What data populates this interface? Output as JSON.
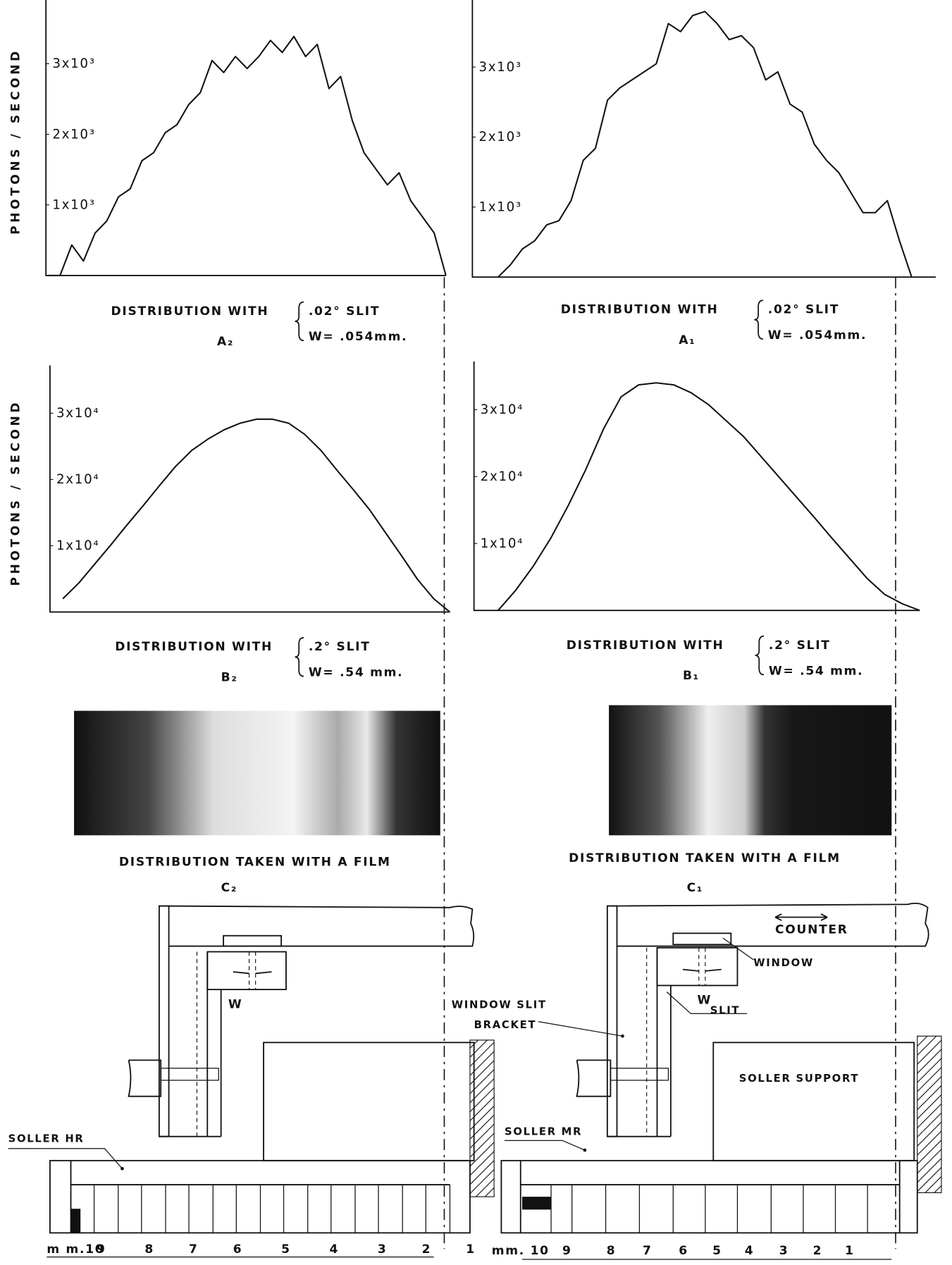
{
  "chart_data": [
    {
      "type": "line",
      "ylabel": "PHOTONS / SECOND",
      "title": "DISTRIBUTION WITH",
      "slit": ".02° SLIT",
      "width": "W= .054mm.",
      "label": "A₂",
      "color": "#111111",
      "ylim": [
        0,
        3800
      ],
      "yticks": [
        {
          "value": 1000,
          "label": "1x10³"
        },
        {
          "value": 2000,
          "label": "2x10³"
        },
        {
          "value": 3000,
          "label": "3x10³"
        }
      ],
      "grid": false,
      "values": [
        0,
        0,
        432,
        205,
        602,
        773,
        1114,
        1227,
        1625,
        1739,
        2023,
        2136,
        2420,
        2591,
        3045,
        2875,
        3102,
        2932,
        3102,
        3330,
        3159,
        3386,
        3102,
        3273,
        2648,
        2818,
        2193,
        1739,
        1511,
        1284,
        1455,
        1057,
        830,
        602,
        0
      ]
    },
    {
      "type": "line",
      "title": "DISTRIBUTION WITH",
      "slit": ".02° SLIT",
      "width": "W= .054mm.",
      "label": "A₁",
      "color": "#111111",
      "ylim": [
        0,
        3900
      ],
      "yticks": [
        {
          "value": 1000,
          "label": "1x10³"
        },
        {
          "value": 2000,
          "label": "2x10³"
        },
        {
          "value": 3000,
          "label": "3x10³"
        }
      ],
      "grid": false,
      "values": [
        0,
        172,
        402,
        517,
        747,
        805,
        1092,
        1667,
        1839,
        2529,
        2701,
        2816,
        2931,
        3046,
        3621,
        3506,
        3736,
        3793,
        3621,
        3391,
        3448,
        3276,
        2816,
        2931,
        2471,
        2356,
        1897,
        1667,
        1494,
        1207,
        920,
        920,
        1092,
        517,
        0
      ]
    },
    {
      "type": "line",
      "ylabel": "PHOTONS / SECOND",
      "title": "DISTRIBUTION WITH",
      "slit": ".2° SLIT",
      "width": "W= .54 mm.",
      "label": "B₂",
      "color": "#111111",
      "ylim": [
        0,
        36000
      ],
      "yticks": [
        {
          "value": 10000,
          "label": "1x10⁴"
        },
        {
          "value": 20000,
          "label": "2x10⁴"
        },
        {
          "value": 30000,
          "label": "3x10⁴"
        }
      ],
      "grid": false,
      "values": [
        2000,
        4400,
        7300,
        10200,
        13200,
        16100,
        19100,
        22000,
        24400,
        26100,
        27500,
        28500,
        29100,
        29100,
        28500,
        26800,
        24400,
        21400,
        18500,
        15500,
        12000,
        8500,
        4900,
        2000,
        0
      ]
    },
    {
      "type": "line",
      "title": "DISTRIBUTION WITH",
      "slit": ".2° SLIT",
      "width": "W= .54 mm.",
      "label": "B₁",
      "color": "#111111",
      "ylim": [
        0,
        36000
      ],
      "yticks": [
        {
          "value": 10000,
          "label": "1x10⁴"
        },
        {
          "value": 20000,
          "label": "2x10⁴"
        },
        {
          "value": 30000,
          "label": "3x10⁴"
        }
      ],
      "grid": false,
      "values": [
        0,
        3000,
        6600,
        10800,
        15700,
        21100,
        27100,
        31900,
        33700,
        34000,
        33700,
        32500,
        30700,
        28300,
        25900,
        22900,
        19900,
        16900,
        13900,
        10800,
        7800,
        4800,
        2400,
        1000,
        0
      ]
    }
  ],
  "films": [
    {
      "title": "DISTRIBUTION TAKEN WITH A FILM",
      "label": "C₂"
    },
    {
      "title": "DISTRIBUTION TAKEN WITH A FILM",
      "label": "C₁"
    }
  ],
  "diagram": {
    "counter": "COUNTER",
    "window": "WINDOW",
    "w_left": "W",
    "w_right": "W",
    "slit": "SLIT",
    "bracket": [
      "WINDOW SLIT",
      "BRACKET"
    ],
    "support": "SOLLER SUPPORT",
    "soller_left": "SOLLER HR",
    "soller_right": "SOLLER MR",
    "scale_left": [
      "m m.10",
      "9",
      "8",
      "7",
      "6",
      "5",
      "4",
      "3",
      "2",
      "1"
    ],
    "scale_right": [
      "mm. 10",
      "9",
      "8",
      "7",
      "6",
      "5",
      "4",
      "3",
      "2",
      "1"
    ]
  }
}
